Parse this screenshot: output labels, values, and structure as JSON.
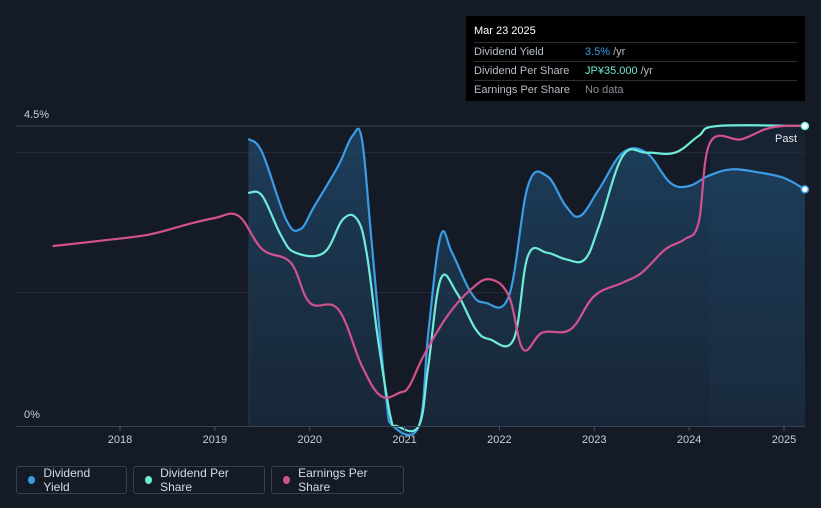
{
  "tooltip": {
    "date": "Mar 23 2025",
    "rows": [
      {
        "label": "Dividend Yield",
        "value": "3.5%",
        "unit": "/yr"
      },
      {
        "label": "Dividend Per Share",
        "value": "JP¥35.000",
        "unit": "/yr"
      },
      {
        "label": "Earnings Per Share",
        "value": "No data",
        "unit": ""
      }
    ]
  },
  "legend": [
    {
      "label": "Dividend Yield",
      "color": "#3b9ce6"
    },
    {
      "label": "Dividend Per Share",
      "color": "#6fecd9"
    },
    {
      "label": "Earnings Per Share",
      "color": "#d2518f"
    }
  ],
  "past_label": "Past",
  "chart_data": {
    "type": "line",
    "y_tick_labels": [
      "4.5%",
      "0%"
    ],
    "ylim": [
      0,
      4.5
    ],
    "xlim": [
      2017.3,
      2025.22
    ],
    "x_ticks": [
      2018,
      2019,
      2020,
      2021,
      2022,
      2023,
      2024,
      2025
    ],
    "x_tick_labels": [
      "2018",
      "2019",
      "2020",
      "2021",
      "2022",
      "2023",
      "2024",
      "2025"
    ],
    "forecast_start": 2024.22,
    "series": [
      {
        "name": "Dividend Yield",
        "color": "#3b9ce6",
        "fill": true,
        "points": [
          [
            2019.36,
            4.3
          ],
          [
            2019.5,
            4.1
          ],
          [
            2019.75,
            3.1
          ],
          [
            2019.9,
            2.95
          ],
          [
            2020.05,
            3.3
          ],
          [
            2020.3,
            3.9
          ],
          [
            2020.45,
            4.35
          ],
          [
            2020.55,
            4.3
          ],
          [
            2020.65,
            2.8
          ],
          [
            2020.8,
            0.5
          ],
          [
            2020.88,
            0.0
          ],
          [
            2021.15,
            0.0
          ],
          [
            2021.25,
            1.4
          ],
          [
            2021.38,
            2.85
          ],
          [
            2021.5,
            2.6
          ],
          [
            2021.7,
            2.0
          ],
          [
            2021.85,
            1.85
          ],
          [
            2022.1,
            1.95
          ],
          [
            2022.3,
            3.6
          ],
          [
            2022.5,
            3.75
          ],
          [
            2022.7,
            3.3
          ],
          [
            2022.85,
            3.15
          ],
          [
            2023.05,
            3.55
          ],
          [
            2023.3,
            4.1
          ],
          [
            2023.55,
            4.1
          ],
          [
            2023.8,
            3.65
          ],
          [
            2024.0,
            3.6
          ],
          [
            2024.2,
            3.75
          ],
          [
            2024.45,
            3.85
          ],
          [
            2024.75,
            3.8
          ],
          [
            2025.0,
            3.72
          ],
          [
            2025.22,
            3.55
          ]
        ]
      },
      {
        "name": "Dividend Per Share",
        "color": "#6fecd9",
        "fill": false,
        "points": [
          [
            2019.36,
            3.5
          ],
          [
            2019.5,
            3.45
          ],
          [
            2019.7,
            2.85
          ],
          [
            2019.85,
            2.6
          ],
          [
            2020.15,
            2.6
          ],
          [
            2020.35,
            3.1
          ],
          [
            2020.5,
            3.1
          ],
          [
            2020.6,
            2.6
          ],
          [
            2020.72,
            1.3
          ],
          [
            2020.85,
            0.15
          ],
          [
            2020.92,
            0.0
          ],
          [
            2021.15,
            0.0
          ],
          [
            2021.25,
            0.9
          ],
          [
            2021.38,
            2.2
          ],
          [
            2021.55,
            2.0
          ],
          [
            2021.75,
            1.45
          ],
          [
            2021.9,
            1.3
          ],
          [
            2022.15,
            1.3
          ],
          [
            2022.3,
            2.55
          ],
          [
            2022.5,
            2.6
          ],
          [
            2022.7,
            2.5
          ],
          [
            2022.9,
            2.5
          ],
          [
            2023.05,
            3.0
          ],
          [
            2023.3,
            4.05
          ],
          [
            2023.55,
            4.1
          ],
          [
            2023.85,
            4.1
          ],
          [
            2024.1,
            4.35
          ],
          [
            2024.3,
            4.5
          ],
          [
            2025.22,
            4.5
          ]
        ]
      },
      {
        "name": "Earnings Per Share",
        "color": "#d2518f",
        "fill": false,
        "points": [
          [
            2017.3,
            2.7
          ],
          [
            2017.8,
            2.78
          ],
          [
            2018.3,
            2.87
          ],
          [
            2018.7,
            3.02
          ],
          [
            2019.0,
            3.12
          ],
          [
            2019.25,
            3.15
          ],
          [
            2019.5,
            2.65
          ],
          [
            2019.8,
            2.45
          ],
          [
            2020.0,
            1.85
          ],
          [
            2020.3,
            1.75
          ],
          [
            2020.55,
            0.9
          ],
          [
            2020.75,
            0.45
          ],
          [
            2020.95,
            0.5
          ],
          [
            2021.05,
            0.6
          ],
          [
            2021.2,
            1.05
          ],
          [
            2021.45,
            1.65
          ],
          [
            2021.7,
            2.05
          ],
          [
            2021.9,
            2.2
          ],
          [
            2022.1,
            1.95
          ],
          [
            2022.25,
            1.15
          ],
          [
            2022.45,
            1.4
          ],
          [
            2022.75,
            1.45
          ],
          [
            2023.0,
            1.95
          ],
          [
            2023.3,
            2.15
          ],
          [
            2023.5,
            2.3
          ],
          [
            2023.75,
            2.65
          ],
          [
            2023.95,
            2.8
          ],
          [
            2024.1,
            3.05
          ],
          [
            2024.22,
            4.25
          ],
          [
            2024.55,
            4.3
          ],
          [
            2024.8,
            4.45
          ],
          [
            2025.0,
            4.5
          ],
          [
            2025.22,
            4.5
          ]
        ]
      }
    ]
  }
}
